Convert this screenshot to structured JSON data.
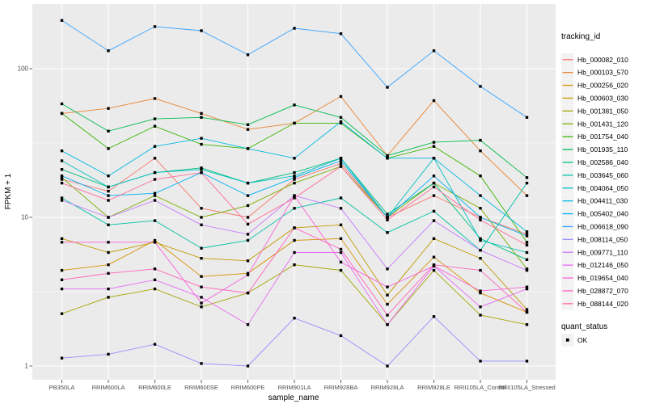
{
  "chart_data": {
    "type": "line",
    "xlabel": "sample_name",
    "ylabel": "FPKM + 1",
    "x_categories": [
      "PB350LA",
      "RRIM600LA",
      "RRIM600LE",
      "RRIM600SE",
      "RRIM600PE",
      "RRIM901LA",
      "RRIM928BA",
      "RRIM928LA",
      "RRIM928LE",
      "RRII105LA_Control",
      "RRII105LA_Stressed"
    ],
    "y_scale": "log10",
    "y_ticks": [
      1,
      10,
      100
    ],
    "y_minor_ticks": [
      3.1623,
      31.623
    ],
    "ylim": [
      1,
      230
    ],
    "grid": true,
    "panel_bg": "#EBEBEB",
    "grid_color": "#FFFFFF",
    "tick_label_color": "#4D4D4D",
    "point_color": "#000000",
    "legend_title": "tracking_id",
    "legend_position": "right",
    "series": [
      {
        "name": "Hb_000082_010",
        "color": "#F8766D",
        "values": [
          18,
          15,
          25,
          11.5,
          10,
          18,
          23,
          10,
          14,
          10,
          7.7
        ]
      },
      {
        "name": "Hb_000103_570",
        "color": "#EA8331",
        "values": [
          50,
          54,
          63,
          50,
          39,
          43,
          65,
          26,
          61,
          28,
          14
        ]
      },
      {
        "name": "Hb_000256_020",
        "color": "#D89000",
        "values": [
          4.4,
          4.8,
          7.0,
          4.0,
          4.2,
          7.0,
          7.2,
          2.6,
          5.4,
          3.1,
          2.3
        ]
      },
      {
        "name": "Hb_000603_030",
        "color": "#C09B00",
        "values": [
          7.2,
          5.8,
          6.8,
          5.3,
          5.1,
          8.5,
          8.9,
          3.0,
          7.2,
          5.3,
          2.4
        ]
      },
      {
        "name": "Hb_001381_050",
        "color": "#A3A500",
        "values": [
          2.25,
          2.9,
          3.3,
          2.5,
          3.1,
          4.8,
          4.4,
          1.9,
          4.4,
          2.2,
          1.9
        ]
      },
      {
        "name": "Hb_001431_120",
        "color": "#7CAE00",
        "values": [
          18.5,
          10,
          14,
          10,
          12,
          17,
          22,
          10,
          17,
          11.5,
          4.5
        ]
      },
      {
        "name": "Hb_001754_040",
        "color": "#39B600",
        "values": [
          50,
          29,
          41,
          31,
          29,
          43,
          43,
          25,
          30,
          19,
          6.8
        ]
      },
      {
        "name": "Hb_001935_110",
        "color": "#00BB4E",
        "values": [
          58,
          38,
          46,
          47,
          42,
          57,
          47,
          26,
          32,
          33,
          18.5
        ]
      },
      {
        "name": "Hb_002586_040",
        "color": "#00BF7D",
        "values": [
          21,
          16,
          20,
          21.5,
          17,
          20,
          25,
          10.5,
          17,
          7.2,
          5.2
        ]
      },
      {
        "name": "Hb_003645_060",
        "color": "#00C1A3",
        "values": [
          13.5,
          8.9,
          9.5,
          6.2,
          7.0,
          11.5,
          13.5,
          7.9,
          11,
          6.0,
          17
        ]
      },
      {
        "name": "Hb_004064_050",
        "color": "#00BFC4",
        "values": [
          24,
          16,
          20,
          21,
          17,
          19,
          25,
          10,
          25,
          7.0,
          5.8
        ]
      },
      {
        "name": "Hb_004411_030",
        "color": "#00BAE0",
        "values": [
          28,
          19,
          30,
          34,
          29,
          25,
          44,
          25,
          25,
          14,
          8.0
        ]
      },
      {
        "name": "Hb_005402_040",
        "color": "#00B0F6",
        "values": [
          19,
          14,
          14.5,
          20,
          14,
          18.5,
          24,
          10,
          19,
          10,
          7.5
        ]
      },
      {
        "name": "Hb_006618_090",
        "color": "#35A2FF",
        "values": [
          211,
          132,
          192,
          180,
          124,
          187,
          172,
          75,
          132,
          76,
          47
        ]
      },
      {
        "name": "Hb_008114_050",
        "color": "#9590FF",
        "values": [
          1.13,
          1.2,
          1.4,
          1.04,
          1.0,
          2.1,
          1.6,
          1.0,
          2.15,
          1.08,
          1.08
        ]
      },
      {
        "name": "Hb_009771_110",
        "color": "#C77CFF",
        "values": [
          13,
          10,
          13,
          8.9,
          7.7,
          14,
          11.5,
          4.5,
          9.5,
          6.0,
          4.4
        ]
      },
      {
        "name": "Hb_012146_050",
        "color": "#E76BF3",
        "values": [
          3.3,
          3.3,
          3.8,
          2.9,
          1.9,
          5.8,
          5.8,
          1.9,
          4.7,
          2.5,
          3.3
        ]
      },
      {
        "name": "Hb_019654_040",
        "color": "#FA62DB",
        "values": [
          6.8,
          6.8,
          6.8,
          2.65,
          4.1,
          14,
          5.0,
          3.4,
          4.7,
          3.2,
          3.4
        ]
      },
      {
        "name": "Hb_028872_070",
        "color": "#FF62BC",
        "values": [
          3.8,
          4.2,
          4.5,
          3.4,
          3.1,
          8.5,
          6.1,
          2.2,
          4.8,
          4.4,
          2.3
        ]
      },
      {
        "name": "Hb_088144_020",
        "color": "#FF6A98",
        "values": [
          17,
          13,
          18,
          20,
          9.0,
          13.5,
          22,
          9.6,
          16,
          9.6,
          6.5
        ]
      }
    ],
    "legend2": {
      "title": "quant_status",
      "items": [
        {
          "label": "OK",
          "marker": "black-square"
        }
      ]
    }
  }
}
